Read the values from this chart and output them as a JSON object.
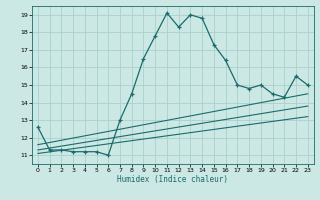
{
  "title": "",
  "xlabel": "Humidex (Indice chaleur)",
  "background_color": "#cce8e4",
  "grid_color": "#aad0cc",
  "line_color": "#1a6b6b",
  "xlim": [
    -0.5,
    23.5
  ],
  "ylim": [
    10.5,
    19.5
  ],
  "xticks": [
    0,
    1,
    2,
    3,
    4,
    5,
    6,
    7,
    8,
    9,
    10,
    11,
    12,
    13,
    14,
    15,
    16,
    17,
    18,
    19,
    20,
    21,
    22,
    23
  ],
  "yticks": [
    11,
    12,
    13,
    14,
    15,
    16,
    17,
    18,
    19
  ],
  "main_x": [
    0,
    1,
    2,
    3,
    4,
    5,
    6,
    7,
    8,
    9,
    10,
    11,
    12,
    13,
    14,
    15,
    16,
    17,
    18,
    19,
    20,
    21,
    22,
    23
  ],
  "main_y": [
    12.6,
    11.3,
    11.3,
    11.2,
    11.2,
    11.2,
    11.0,
    13.0,
    14.5,
    16.5,
    17.8,
    19.1,
    18.3,
    19.0,
    18.8,
    17.3,
    16.4,
    15.0,
    14.8,
    15.0,
    14.5,
    14.3,
    15.5,
    15.0
  ],
  "line1_x": [
    0,
    23
  ],
  "line1_y": [
    11.1,
    13.2
  ],
  "line2_x": [
    0,
    23
  ],
  "line2_y": [
    11.3,
    13.8
  ],
  "line3_x": [
    0,
    23
  ],
  "line3_y": [
    11.6,
    14.5
  ]
}
